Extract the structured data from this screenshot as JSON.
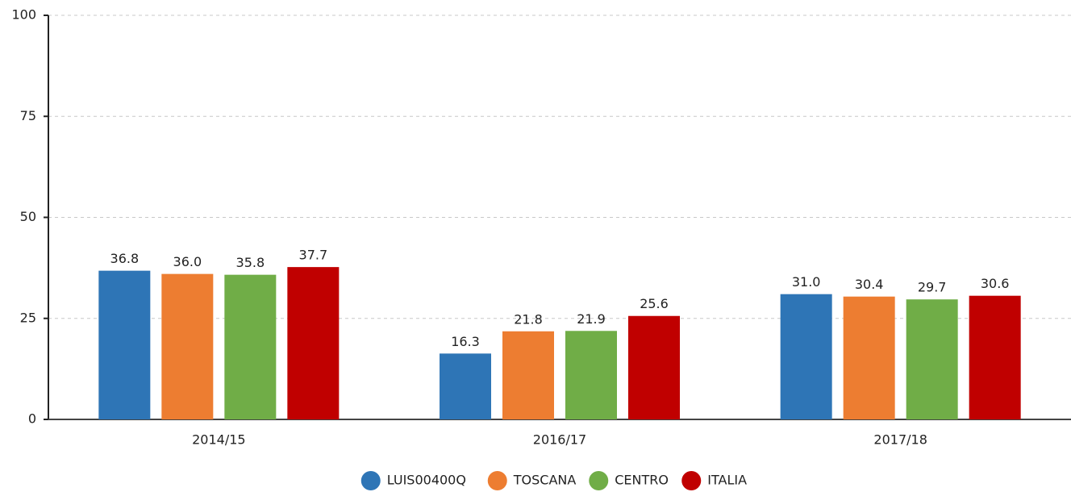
{
  "chart_data": {
    "type": "bar",
    "categories": [
      "2014/15",
      "2016/17",
      "2017/18"
    ],
    "series": [
      {
        "name": "LUIS00400Q",
        "color": "#2e75b6",
        "values": [
          36.8,
          16.3,
          31.0
        ],
        "value_labels": [
          "36.8",
          "16.3",
          "31.0"
        ]
      },
      {
        "name": "TOSCANA",
        "color": "#ed7d31",
        "values": [
          36.0,
          21.8,
          30.4
        ],
        "value_labels": [
          "36.0",
          "21.8",
          "30.4"
        ]
      },
      {
        "name": "CENTRO",
        "color": "#70ad47",
        "values": [
          35.8,
          21.9,
          29.7
        ],
        "value_labels": [
          "35.8",
          "21.9",
          "29.7"
        ]
      },
      {
        "name": "ITALIA",
        "color": "#c00000",
        "values": [
          37.7,
          25.6,
          30.6
        ],
        "value_labels": [
          "37.7",
          "25.6",
          "30.6"
        ]
      }
    ],
    "ylim": [
      0,
      100
    ],
    "yticks": [
      0,
      25,
      50,
      75,
      100
    ],
    "grid": true,
    "legend": "bottom"
  }
}
